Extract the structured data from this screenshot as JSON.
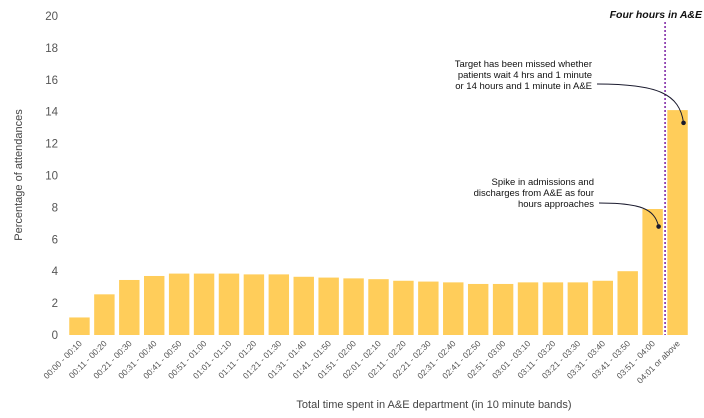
{
  "chart_data": {
    "type": "bar",
    "xlabel": "Total time spent in A&E department (in 10 minute bands)",
    "ylabel": "Percentage of attendances",
    "ylim": [
      0,
      20
    ],
    "yticks": [
      0,
      2,
      4,
      6,
      8,
      10,
      12,
      14,
      16,
      18,
      20
    ],
    "grid": false,
    "categories": [
      "00:00 - 00:10",
      "00:11 - 00:20",
      "00:21 - 00:30",
      "00:31 - 00:40",
      "00:41 - 00:50",
      "00:51 - 01:00",
      "01:01 - 01:10",
      "01:11 - 01:20",
      "01:21 - 01:30",
      "01:31 - 01:40",
      "01:41 - 01:50",
      "01:51 - 02:00",
      "02:01 - 02:10",
      "02:11 - 02:20",
      "02:21 - 02:30",
      "02:31 - 02:40",
      "02:41 - 02:50",
      "02:51 - 03:00",
      "03:01 - 03:10",
      "03:11 - 03:20",
      "03:21 - 03:30",
      "03:31 - 03:40",
      "03:41 - 03:50",
      "03:51 - 04:00",
      "04:01 or above"
    ],
    "values": [
      1.1,
      2.55,
      3.45,
      3.7,
      3.85,
      3.85,
      3.85,
      3.8,
      3.8,
      3.65,
      3.6,
      3.55,
      3.5,
      3.4,
      3.35,
      3.3,
      3.2,
      3.2,
      3.3,
      3.3,
      3.3,
      3.4,
      4.0,
      7.9,
      14.1
    ],
    "bar_color": "#FFCD5A",
    "marker": {
      "label": "Four hours in A&E",
      "after_category_index": 23,
      "color": "#7A1FA2"
    },
    "annotations": [
      {
        "lines": [
          "Target has been missed whether",
          "patients wait 4 hrs and 1 minute",
          "or 14 hours and 1 minute in A&E"
        ],
        "target_category_index": 24,
        "target_value": 13.3
      },
      {
        "lines": [
          "Spike in admissions and",
          "discharges from A&E as four",
          "hours approaches"
        ],
        "target_category_index": 23,
        "target_value": 6.8
      }
    ]
  }
}
